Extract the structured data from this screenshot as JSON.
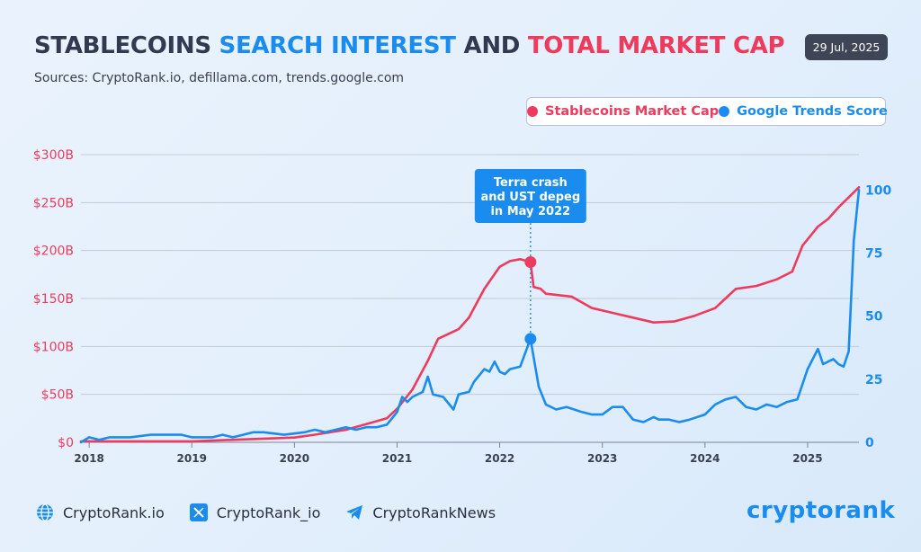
{
  "header": {
    "title_part1": "STABLECOINS",
    "title_part2": "SEARCH INTEREST",
    "title_part3": "AND",
    "title_part4": "TOTAL MARKET CAP",
    "subtitle": "Sources: CryptoRank.io, defillama.com, trends.google.com",
    "date": "29 Jul, 2025"
  },
  "legend": {
    "market_cap_label": "Stablecoins Market Cap",
    "trends_label": "Google Trends Score"
  },
  "colors": {
    "market_cap": "#ee3b5d",
    "trends": "#1a8cf0",
    "callout": "#1a8cf0"
  },
  "footer": {
    "website": "CryptoRank.io",
    "twitter": "CryptoRank_io",
    "telegram": "CryptoRankNews",
    "logo": "cryptorank"
  },
  "chart_data": {
    "type": "line",
    "grid": true,
    "x_range": [
      2017.92,
      2025.5
    ],
    "x_ticks": [
      "2018",
      "2019",
      "2020",
      "2021",
      "2022",
      "2023",
      "2024",
      "2025"
    ],
    "y_left": {
      "range": [
        0,
        300
      ],
      "ticks": [
        0,
        50,
        100,
        150,
        200,
        250,
        300
      ],
      "tick_labels": [
        "$0",
        "$50B",
        "$100B",
        "$150B",
        "$200B",
        "$250B",
        "$300B"
      ]
    },
    "y_right": {
      "range": [
        0,
        114
      ],
      "ticks": [
        0,
        25,
        50,
        75,
        100
      ],
      "tick_labels": [
        "0",
        "25",
        "50",
        "75",
        "100"
      ]
    },
    "annotation": {
      "lines": [
        "Terra crash",
        "and UST depeg",
        "in May 2022"
      ],
      "x": 2022.3,
      "market_cap_value": 188,
      "trends_value": 41
    },
    "series": [
      {
        "name": "Stablecoins Market Cap",
        "axis": "left",
        "x": [
          2017.92,
          2018.5,
          2019.0,
          2019.5,
          2020.0,
          2020.2,
          2020.5,
          2020.7,
          2020.9,
          2021.0,
          2021.15,
          2021.3,
          2021.4,
          2021.6,
          2021.7,
          2021.85,
          2022.0,
          2022.1,
          2022.2,
          2022.3,
          2022.33,
          2022.4,
          2022.45,
          2022.7,
          2022.9,
          2023.1,
          2023.3,
          2023.5,
          2023.7,
          2023.9,
          2024.1,
          2024.2,
          2024.3,
          2024.5,
          2024.7,
          2024.85,
          2024.95,
          2025.1,
          2025.2,
          2025.3,
          2025.5
        ],
        "values": [
          1,
          1,
          1,
          3,
          5,
          8,
          13,
          19,
          25,
          35,
          55,
          85,
          108,
          118,
          130,
          160,
          183,
          189,
          191,
          188,
          162,
          160,
          155,
          152,
          140,
          135,
          130,
          125,
          126,
          132,
          140,
          150,
          160,
          163,
          170,
          178,
          205,
          225,
          233,
          245,
          266
        ]
      },
      {
        "name": "Google Trends Score",
        "axis": "right",
        "x": [
          2017.92,
          2018.0,
          2018.1,
          2018.2,
          2018.4,
          2018.6,
          2018.7,
          2018.9,
          2019.0,
          2019.2,
          2019.3,
          2019.4,
          2019.5,
          2019.6,
          2019.7,
          2019.9,
          2020.1,
          2020.2,
          2020.3,
          2020.4,
          2020.5,
          2020.6,
          2020.7,
          2020.8,
          2020.9,
          2021.0,
          2021.05,
          2021.1,
          2021.15,
          2021.25,
          2021.3,
          2021.35,
          2021.45,
          2021.55,
          2021.6,
          2021.7,
          2021.75,
          2021.85,
          2021.9,
          2021.95,
          2022.0,
          2022.05,
          2022.1,
          2022.2,
          2022.3,
          2022.38,
          2022.45,
          2022.55,
          2022.65,
          2022.8,
          2022.9,
          2023.0,
          2023.1,
          2023.2,
          2023.3,
          2023.4,
          2023.5,
          2023.55,
          2023.65,
          2023.75,
          2023.85,
          2024.0,
          2024.1,
          2024.2,
          2024.3,
          2024.4,
          2024.5,
          2024.6,
          2024.7,
          2024.8,
          2024.9,
          2025.0,
          2025.1,
          2025.15,
          2025.25,
          2025.3,
          2025.35,
          2025.4,
          2025.45,
          2025.5
        ],
        "values": [
          0,
          2,
          1,
          2,
          2,
          3,
          3,
          3,
          2,
          2,
          3,
          2,
          3,
          4,
          4,
          3,
          4,
          5,
          4,
          5,
          6,
          5,
          6,
          6,
          7,
          12,
          18,
          16,
          18,
          20,
          26,
          19,
          18,
          13,
          19,
          20,
          24,
          29,
          28,
          32,
          28,
          27,
          29,
          30,
          41,
          22,
          15,
          13,
          14,
          12,
          11,
          11,
          14,
          14,
          9,
          8,
          10,
          9,
          9,
          8,
          9,
          11,
          15,
          17,
          18,
          14,
          13,
          15,
          14,
          16,
          17,
          29,
          37,
          31,
          33,
          31,
          30,
          36,
          80,
          100
        ]
      }
    ]
  }
}
